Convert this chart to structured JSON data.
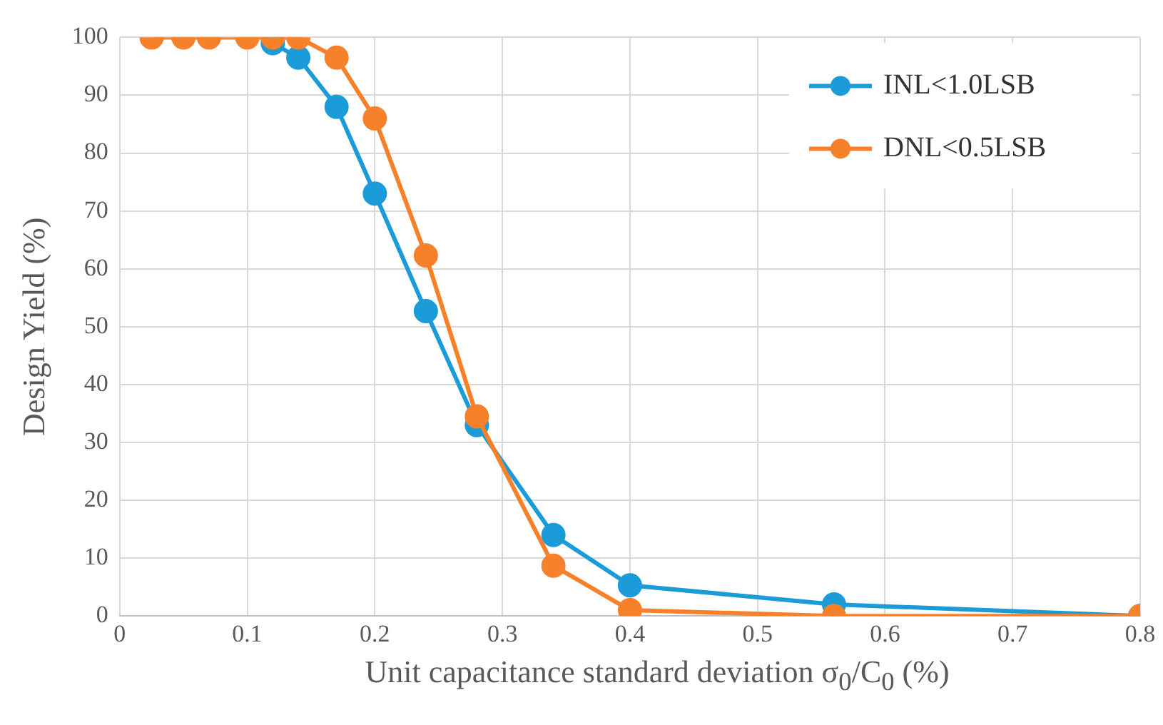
{
  "chart_data": {
    "type": "line",
    "xlabel": "Unit capacitance standard deviation σ$_{0}$/C$_{0}$ (%)",
    "ylabel": "Design Yield (%)",
    "x": [
      0.025,
      0.05,
      0.07,
      0.1,
      0.12,
      0.14,
      0.17,
      0.2,
      0.24,
      0.28,
      0.34,
      0.4,
      0.56,
      0.8
    ],
    "series": [
      {
        "name": "INL<1.0LSB",
        "color": "#1b9bd7",
        "values": [
          null,
          null,
          null,
          null,
          99,
          96.5,
          88,
          73,
          52.7,
          33,
          14,
          5.3,
          2,
          0
        ]
      },
      {
        "name": "DNL<0.5LSB",
        "color": "#f7802b",
        "values": [
          100,
          100,
          100,
          100,
          100,
          100,
          96.5,
          86,
          62.3,
          34.5,
          8.7,
          1,
          0,
          0
        ]
      }
    ],
    "xlim": [
      0,
      0.8
    ],
    "xticks": [
      0,
      0.1,
      0.2,
      0.3,
      0.4,
      0.5,
      0.6,
      0.7,
      0.8
    ],
    "ylim": [
      0,
      100
    ],
    "yticks": [
      0,
      10,
      20,
      30,
      40,
      50,
      60,
      70,
      80,
      90,
      100
    ],
    "grid": true,
    "legend": "top right",
    "marker": "circle",
    "line_style": "solid"
  }
}
